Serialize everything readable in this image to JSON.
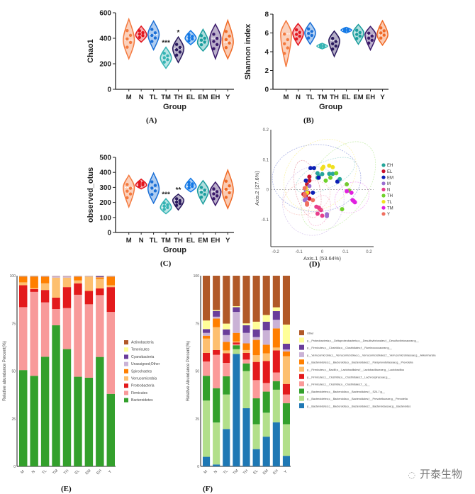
{
  "groups": [
    "M",
    "N",
    "TL",
    "TM",
    "TH",
    "EL",
    "EM",
    "EH",
    "Y"
  ],
  "group_colors": {
    "M": "#f47a3f",
    "N": "#e3161e",
    "TL": "#1b6fd6",
    "TM": "#36b4b4",
    "TH": "#2a1a5e",
    "EL": "#1479e6",
    "EM": "#1b9e9e",
    "EH": "#3b1a6b",
    "Y": "#f06a26"
  },
  "panel_labels": {
    "A": "(A)",
    "B": "(B)",
    "C": "(C)",
    "D": "(D)",
    "E": "(E)",
    "F": "(F)"
  },
  "watermark": "开泰生物",
  "chart_data": [
    {
      "id": "A",
      "type": "violin",
      "title": "",
      "xlabel": "Group",
      "ylabel": "Chao1",
      "ylim": [
        0,
        600
      ],
      "yticks": [
        0,
        200,
        400,
        600
      ],
      "categories": [
        "M",
        "N",
        "TL",
        "TM",
        "TH",
        "EL",
        "EM",
        "EH",
        "Y"
      ],
      "medians": [
        385,
        425,
        430,
        245,
        320,
        400,
        365,
        400,
        370
      ],
      "ranges": [
        [
          240,
          550
        ],
        [
          370,
          495
        ],
        [
          310,
          535
        ],
        [
          165,
          330
        ],
        [
          210,
          410
        ],
        [
          350,
          460
        ],
        [
          300,
          470
        ],
        [
          240,
          510
        ],
        [
          240,
          540
        ]
      ],
      "significance": {
        "TM": "***",
        "TH": "*"
      }
    },
    {
      "id": "B",
      "type": "violin",
      "xlabel": "Group",
      "ylabel": "Shannon index",
      "ylim": [
        0,
        8
      ],
      "yticks": [
        0,
        2,
        4,
        6,
        8
      ],
      "categories": [
        "M",
        "N",
        "TL",
        "TM",
        "TH",
        "EL",
        "EM",
        "EH",
        "Y"
      ],
      "medians": [
        5.9,
        6.0,
        6.0,
        4.6,
        5.2,
        6.3,
        6.0,
        5.8,
        5.8
      ],
      "ranges": [
        [
          2.4,
          7.3
        ],
        [
          4.7,
          7.0
        ],
        [
          4.8,
          7.1
        ],
        [
          4.3,
          4.9
        ],
        [
          3.5,
          6.2
        ],
        [
          6.0,
          6.6
        ],
        [
          4.8,
          6.9
        ],
        [
          4.2,
          6.7
        ],
        [
          4.7,
          7.3
        ]
      ],
      "significance": {}
    },
    {
      "id": "C",
      "type": "violin",
      "xlabel": "Group",
      "ylabel": "observed_otus",
      "ylim": [
        0,
        500
      ],
      "yticks": [
        0,
        100,
        200,
        300,
        400,
        500
      ],
      "categories": [
        "M",
        "N",
        "TL",
        "TM",
        "TH",
        "EL",
        "EM",
        "EH",
        "Y"
      ],
      "medians": [
        300,
        315,
        290,
        165,
        215,
        305,
        280,
        270,
        280
      ],
      "ranges": [
        [
          170,
          380
        ],
        [
          290,
          355
        ],
        [
          195,
          395
        ],
        [
          125,
          225
        ],
        [
          150,
          255
        ],
        [
          270,
          360
        ],
        [
          190,
          345
        ],
        [
          180,
          335
        ],
        [
          160,
          415
        ]
      ],
      "significance": {
        "TM": "***",
        "TH": "**"
      }
    },
    {
      "id": "D",
      "type": "scatter",
      "xlabel": "Axis.1 (53.64%)",
      "ylabel": "Axis.2 (27.6%)",
      "xlim": [
        -0.22,
        0.22
      ],
      "ylim": [
        -0.19,
        0.2
      ],
      "xticks": [
        -0.2,
        -0.1,
        0.0,
        0.1,
        0.2
      ],
      "yticks": [
        -0.1,
        0.0,
        0.1,
        0.2
      ],
      "legend": [
        "EH",
        "EL",
        "EM",
        "M",
        "N",
        "TH",
        "TL",
        "TM",
        "Y"
      ],
      "legend_colors": [
        "#26a69a",
        "#c8102e",
        "#0a1fb5",
        "#9b6fd1",
        "#e83e8c",
        "#6fd12a",
        "#f0e020",
        "#e020e0",
        "#f07060"
      ],
      "legend_position": "right",
      "series": [
        {
          "name": "EH",
          "points": [
            [
              -0.02,
              0.055
            ],
            [
              -0.015,
              0.045
            ],
            [
              0.0,
              0.052
            ],
            [
              0.03,
              0.053
            ],
            [
              0.045,
              0.053
            ],
            [
              0.075,
              0.035
            ],
            [
              -0.02,
              0.04
            ]
          ]
        },
        {
          "name": "EL",
          "points": [
            [
              -0.055,
              0.043
            ],
            [
              -0.055,
              0.03
            ],
            [
              -0.065,
              0.018
            ],
            [
              -0.08,
              -0.015
            ],
            [
              -0.07,
              -0.02
            ],
            [
              -0.055,
              -0.03
            ],
            [
              -0.06,
              -0.01
            ]
          ]
        },
        {
          "name": "EM",
          "points": [
            [
              -0.05,
              0.072
            ],
            [
              -0.035,
              0.072
            ],
            [
              -0.07,
              0.03
            ],
            [
              -0.015,
              0.04
            ],
            [
              -0.04,
              -0.01
            ],
            [
              0.065,
              0.027
            ]
          ]
        },
        {
          "name": "M",
          "points": [
            [
              -0.055,
              0.012
            ],
            [
              -0.07,
              -0.005
            ],
            [
              -0.075,
              -0.035
            ],
            [
              -0.07,
              -0.03
            ],
            [
              0.02,
              -0.082
            ],
            [
              0.02,
              -0.088
            ]
          ]
        },
        {
          "name": "N",
          "points": [
            [
              -0.025,
              -0.057
            ],
            [
              -0.015,
              -0.06
            ],
            [
              -0.01,
              -0.065
            ],
            [
              -0.005,
              -0.068
            ],
            [
              -0.02,
              -0.08
            ],
            [
              0.0,
              -0.087
            ]
          ]
        },
        {
          "name": "TH",
          "points": [
            [
              0.06,
              0.055
            ],
            [
              0.035,
              0.04
            ],
            [
              0.015,
              0.03
            ],
            [
              0.105,
              0.018
            ],
            [
              0.115,
              -0.003
            ],
            [
              0.085,
              -0.065
            ]
          ]
        },
        {
          "name": "TL",
          "points": [
            [
              0.0,
              0.07
            ],
            [
              0.005,
              0.076
            ],
            [
              0.03,
              0.08
            ],
            [
              0.045,
              0.075
            ],
            [
              -0.065,
              -0.01
            ],
            [
              -0.07,
              0.005
            ]
          ]
        },
        {
          "name": "TM",
          "points": [
            [
              0.105,
              -0.005
            ],
            [
              0.125,
              -0.01
            ],
            [
              0.13,
              -0.035
            ],
            [
              0.135,
              -0.038
            ],
            [
              0.14,
              -0.042
            ]
          ]
        },
        {
          "name": "Y",
          "points": [
            [
              -0.075,
              0.005
            ],
            [
              -0.075,
              -0.015
            ],
            [
              -0.065,
              -0.045
            ],
            [
              -0.065,
              -0.05
            ],
            [
              -0.04,
              -0.035
            ],
            [
              -0.075,
              -0.02
            ]
          ]
        }
      ]
    },
    {
      "id": "E",
      "type": "stacked-bar",
      "xlabel": "",
      "ylabel": "Relative abundance Percent(%)",
      "ylim": [
        0,
        100
      ],
      "yticks": [
        0,
        25,
        50,
        75,
        100
      ],
      "categories": [
        "M",
        "N",
        "TL",
        "TM",
        "TH",
        "EL",
        "EM",
        "EH",
        "Y"
      ],
      "legend_position": "right",
      "series": [
        {
          "name": "Bacteroidetes",
          "color": "#33a02c",
          "values": [
            50.5,
            47.5,
            57.5,
            74,
            61.5,
            47,
            46.5,
            57.5,
            38
          ]
        },
        {
          "name": "Firmicutes",
          "color": "#f89a9a",
          "values": [
            33,
            44,
            28.5,
            8.5,
            21.5,
            43,
            38.5,
            32.5,
            43
          ]
        },
        {
          "name": "Proteobacteria",
          "color": "#e31a1c",
          "values": [
            11.5,
            1.5,
            6.5,
            6,
            11,
            6,
            7,
            3.5,
            13
          ]
        },
        {
          "name": "Verrucomicrobia",
          "color": "#fdbf6f",
          "values": [
            1.5,
            0.5,
            3.5,
            10.5,
            5,
            1.5,
            7.5,
            5,
            1
          ]
        },
        {
          "name": "Spirochaetes",
          "color": "#ff7f00",
          "values": [
            3,
            6,
            3.5,
            0,
            0,
            2,
            0,
            0.8,
            4.5
          ]
        },
        {
          "name": "Unassigned;Other",
          "color": "#cab2d6",
          "values": [
            0.2,
            0.2,
            0.3,
            0.8,
            0.8,
            0.3,
            0.3,
            0.2,
            0.3
          ]
        },
        {
          "name": "Cyanobacteria",
          "color": "#6a3d9a",
          "values": [
            0,
            0,
            0,
            0,
            0,
            0,
            0,
            0.5,
            0
          ]
        },
        {
          "name": "Tenericutes",
          "color": "#ffff99",
          "values": [
            0.1,
            0.1,
            0.1,
            0.1,
            0.1,
            0.1,
            0.1,
            0.1,
            0.1
          ]
        },
        {
          "name": "Actinobacteria",
          "color": "#b15928",
          "values": [
            0.2,
            0.2,
            0.1,
            0.1,
            0.1,
            0.1,
            0.1,
            0.1,
            0.1
          ]
        }
      ]
    },
    {
      "id": "F",
      "type": "stacked-bar",
      "xlabel": "",
      "ylabel": "Relative Abundance Percent(%)",
      "ylim": [
        0,
        100
      ],
      "yticks": [
        0,
        25,
        50,
        75,
        100
      ],
      "categories": [
        "M",
        "N",
        "TL",
        "TM",
        "TH",
        "EL",
        "EM",
        "EH",
        "Y"
      ],
      "legend_position": "right",
      "series": [
        {
          "name": "p__Bacteroidetes;c__Bacteroidia;o__Bacteroidales;f__Bacteroidaceae;g__Bacteroides",
          "color": "#1f78b4",
          "values": [
            5,
            1,
            19.5,
            59,
            30.5,
            9,
            15.5,
            23,
            5.5
          ]
        },
        {
          "name": "p__Bacteroidetes;c__Bacteroidia;o__Bacteroidales;f__Prevotellaceae;g__Prevotella",
          "color": "#b2df8a",
          "values": [
            29.5,
            22,
            18,
            2.5,
            19.5,
            13,
            12.5,
            17,
            16.5
          ]
        },
        {
          "name": "p__Bacteroidetes;c__Bacteroidia;o__Bacteroidales;f__S24-7;g__",
          "color": "#33a02c",
          "values": [
            13,
            18,
            9.5,
            2,
            4,
            13.5,
            11,
            4.5,
            11
          ]
        },
        {
          "name": "p__Firmicutes;c__Clostridia;o__Clostridiales;f__;g__",
          "color": "#fb9a99",
          "values": [
            7.5,
            17.5,
            7,
            0.5,
            2,
            9.5,
            4.5,
            4.5,
            4.5
          ]
        },
        {
          "name": "p__Firmicutes;c__Clostridia;o__Clostridiales;f__Lachnospiraceae;g__",
          "color": "#e31a1c",
          "values": [
            4.5,
            2.5,
            5,
            1,
            3.5,
            9.5,
            11.5,
            11.5,
            5.5
          ]
        },
        {
          "name": "p__Firmicutes;c__Bacilli;o__Lactobacillales;f__Lactobacillaceae;g__Lactobacillus",
          "color": "#fdbf6f",
          "values": [
            7.5,
            12,
            1.5,
            0.5,
            1.5,
            3.5,
            4,
            1.5,
            14.5
          ]
        },
        {
          "name": "p__Bacteroidetes;c__Bacteroidia;o__Bacteroidales;f__Paraprevotellaceae;g__Prevotella",
          "color": "#ff7f00",
          "values": [
            1.5,
            4.5,
            4.5,
            4.5,
            3.5,
            8,
            4.5,
            10,
            2.5
          ]
        },
        {
          "name": "p__Verrucomicrobia;c__Verrucomicrobiae;o__Verrucomicrobiales;f__Verrucomicrobiaceae;g__Akkermansia",
          "color": "#cab2d6",
          "values": [
            1.5,
            1,
            3.5,
            11,
            5.5,
            1.5,
            7.5,
            4.5,
            1
          ]
        },
        {
          "name": "p__Firmicutes;c__Clostridia;o__Clostridiales;f__Ruminococcaceae;g__",
          "color": "#6a3d9a",
          "values": [
            2,
            3,
            3,
            2.5,
            4,
            4,
            4.5,
            4.5,
            3
          ]
        },
        {
          "name": "p__Proteobacteria;c__Deltaproteobacteria;o__Desulfovibrionales;f__Desulfovibrionaceae;g__",
          "color": "#ffff99",
          "values": [
            4.5,
            0.5,
            3,
            0.5,
            1,
            4,
            3.5,
            2,
            10
          ]
        },
        {
          "name": "Other",
          "color": "#b15928",
          "values": [
            23.5,
            18,
            25,
            16,
            25,
            24,
            20.5,
            16.5,
            25.5
          ]
        }
      ]
    }
  ]
}
